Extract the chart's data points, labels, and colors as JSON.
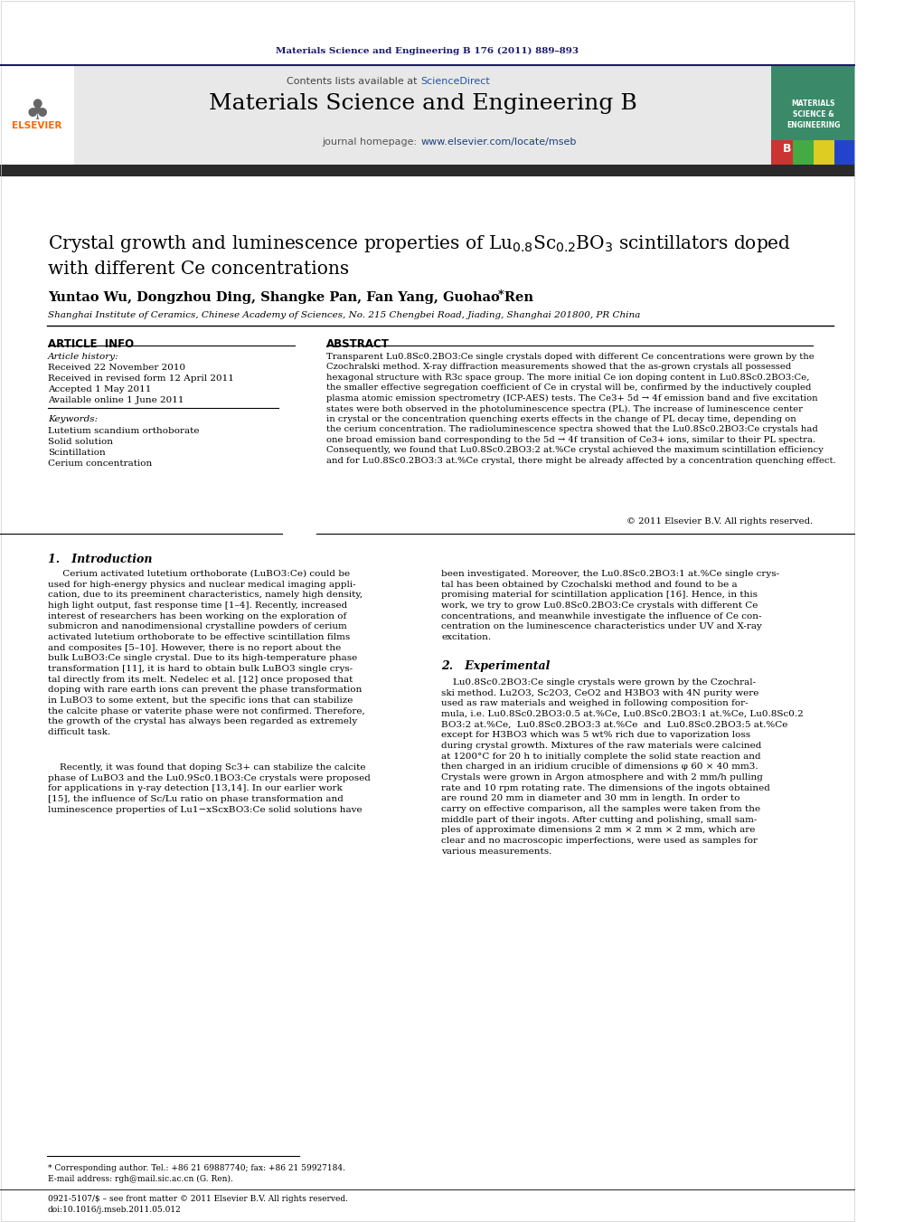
{
  "journal_ref": "Materials Science and Engineering B 176 (2011) 889–893",
  "journal_name": "Materials Science and Engineering B",
  "contents_line": "Contents lists available at ScienceDirect",
  "journal_homepage": "journal homepage: www.elsevier.com/locate/mseb",
  "sciencedirect_text": "ScienceDirect",
  "homepage_url": "www.elsevier.com/locate/mseb",
  "authors": "Yuntao Wu, Dongzhou Ding, Shangke Pan, Fan Yang, Guohao Ren",
  "affiliation": "Shanghai Institute of Ceramics, Chinese Academy of Sciences, No. 215 Chengbei Road, Jiading, Shanghai 201800, PR China",
  "article_info_header": "ARTICLE  INFO",
  "abstract_header": "ABSTRACT",
  "article_history_label": "Article history:",
  "received": "Received 22 November 2010",
  "received_revised": "Received in revised form 12 April 2011",
  "accepted": "Accepted 1 May 2011",
  "available": "Available online 1 June 2011",
  "keywords_label": "Keywords:",
  "keyword1": "Lutetium scandium orthoborate",
  "keyword2": "Solid solution",
  "keyword3": "Scintillation",
  "keyword4": "Cerium concentration",
  "copyright": "© 2011 Elsevier B.V. All rights reserved.",
  "intro_header": "1.   Introduction",
  "exp_header": "2.   Experimental",
  "footnote1": "* Corresponding author. Tel.: +86 21 69887740; fax: +86 21 59927184.",
  "footnote2": "E-mail address: rgh@mail.sic.ac.cn (G. Ren).",
  "footnote3": "0921-5107/$ – see front matter © 2011 Elsevier B.V. All rights reserved.",
  "footnote4": "doi:10.1016/j.mseb.2011.05.012",
  "header_bar_color": "#1a1a6e",
  "elsevier_color": "#ff6600",
  "journal_ref_color": "#1a1a6e",
  "link_color": "#1a4080",
  "header_bg_color": "#e8e8e8",
  "dark_bar_color": "#333333",
  "sciencedirect_link_color": "#2255aa",
  "cover_green": "#4a9a7a",
  "cover_green_dark": "#3a8a6a",
  "cover_strips": [
    "#cc3333",
    "#44aa44",
    "#ddcc22",
    "#2244cc"
  ]
}
